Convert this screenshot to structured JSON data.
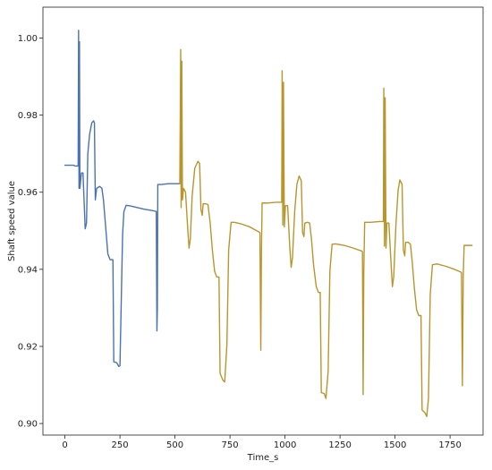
{
  "chart_data": {
    "type": "line",
    "title": "",
    "xlabel": "Time_s",
    "ylabel": "Shaft speed value",
    "xlim": [
      -100,
      1900
    ],
    "ylim": [
      0.897,
      1.008
    ],
    "grid": false,
    "x_ticks": [
      0,
      250,
      500,
      750,
      1000,
      1250,
      1500,
      1750
    ],
    "x_tick_labels": [
      "0",
      "250",
      "500",
      "750",
      "1000",
      "1250",
      "1500",
      "1750"
    ],
    "y_ticks": [
      0.9,
      0.92,
      0.94,
      0.96,
      0.98,
      1.0
    ],
    "y_tick_labels": [
      "0.90",
      "0.92",
      "0.94",
      "0.96",
      "0.98",
      "1.00"
    ],
    "series": [
      {
        "color": "#4C72B0",
        "points": [
          [
            0,
            0.967
          ],
          [
            40,
            0.967
          ],
          [
            45,
            0.9668
          ],
          [
            60,
            0.9668
          ],
          [
            62,
            1.002
          ],
          [
            64,
            0.961
          ],
          [
            66,
            0.999
          ],
          [
            68,
            0.961
          ],
          [
            75,
            0.965
          ],
          [
            82,
            0.965
          ],
          [
            92,
            0.9505
          ],
          [
            98,
            0.952
          ],
          [
            104,
            0.97
          ],
          [
            112,
            0.975
          ],
          [
            122,
            0.978
          ],
          [
            130,
            0.9785
          ],
          [
            134,
            0.978
          ],
          [
            138,
            0.958
          ],
          [
            144,
            0.961
          ],
          [
            158,
            0.9615
          ],
          [
            168,
            0.961
          ],
          [
            175,
            0.958
          ],
          [
            185,
            0.951
          ],
          [
            195,
            0.944
          ],
          [
            205,
            0.9425
          ],
          [
            218,
            0.9425
          ],
          [
            222,
            0.916
          ],
          [
            235,
            0.9158
          ],
          [
            245,
            0.9148
          ],
          [
            250,
            0.915
          ],
          [
            262,
            0.949
          ],
          [
            268,
            0.955
          ],
          [
            278,
            0.9566
          ],
          [
            300,
            0.9564
          ],
          [
            330,
            0.956
          ],
          [
            360,
            0.9556
          ],
          [
            400,
            0.9552
          ],
          [
            415,
            0.955
          ],
          [
            418,
            0.924
          ],
          [
            420,
            0.93
          ],
          [
            422,
            0.962
          ],
          [
            440,
            0.962
          ],
          [
            470,
            0.9622
          ],
          [
            510,
            0.9622
          ],
          [
            522,
            0.9622
          ]
        ]
      },
      {
        "color": "#B8962E",
        "points": [
          [
            522,
            0.9622
          ],
          [
            526,
            0.997
          ],
          [
            528,
            0.956
          ],
          [
            531,
            0.994
          ],
          [
            534,
            0.958
          ],
          [
            539,
            0.961
          ],
          [
            548,
            0.96
          ],
          [
            558,
            0.9505
          ],
          [
            564,
            0.9455
          ],
          [
            570,
            0.948
          ],
          [
            578,
            0.959
          ],
          [
            590,
            0.9662
          ],
          [
            604,
            0.968
          ],
          [
            612,
            0.9675
          ],
          [
            618,
            0.9555
          ],
          [
            624,
            0.954
          ],
          [
            628,
            0.957
          ],
          [
            640,
            0.957
          ],
          [
            650,
            0.9568
          ],
          [
            660,
            0.952
          ],
          [
            670,
            0.945
          ],
          [
            680,
            0.9395
          ],
          [
            690,
            0.938
          ],
          [
            700,
            0.938
          ],
          [
            705,
            0.913
          ],
          [
            718,
            0.9112
          ],
          [
            726,
            0.9108
          ],
          [
            736,
            0.9205
          ],
          [
            744,
            0.945
          ],
          [
            755,
            0.9522
          ],
          [
            770,
            0.9522
          ],
          [
            800,
            0.9518
          ],
          [
            840,
            0.951
          ],
          [
            878,
            0.9498
          ],
          [
            886,
            0.9495
          ],
          [
            890,
            0.919
          ],
          [
            893,
            0.945
          ],
          [
            896,
            0.9572
          ],
          [
            920,
            0.9572
          ],
          [
            960,
            0.9574
          ],
          [
            985,
            0.9574
          ],
          [
            987,
            0.9915
          ],
          [
            990,
            0.9515
          ],
          [
            993,
            0.9885
          ],
          [
            997,
            0.951
          ],
          [
            1002,
            0.9565
          ],
          [
            1012,
            0.9565
          ],
          [
            1022,
            0.9455
          ],
          [
            1028,
            0.9405
          ],
          [
            1034,
            0.943
          ],
          [
            1044,
            0.955
          ],
          [
            1054,
            0.962
          ],
          [
            1064,
            0.9642
          ],
          [
            1074,
            0.963
          ],
          [
            1080,
            0.9495
          ],
          [
            1086,
            0.9485
          ],
          [
            1090,
            0.952
          ],
          [
            1102,
            0.9522
          ],
          [
            1112,
            0.952
          ],
          [
            1120,
            0.948
          ],
          [
            1130,
            0.941
          ],
          [
            1142,
            0.9355
          ],
          [
            1152,
            0.934
          ],
          [
            1160,
            0.934
          ],
          [
            1165,
            0.908
          ],
          [
            1178,
            0.9078
          ],
          [
            1186,
            0.9065
          ],
          [
            1196,
            0.9135
          ],
          [
            1204,
            0.9395
          ],
          [
            1214,
            0.9465
          ],
          [
            1230,
            0.9466
          ],
          [
            1270,
            0.9462
          ],
          [
            1310,
            0.9455
          ],
          [
            1346,
            0.9448
          ],
          [
            1352,
            0.9446
          ],
          [
            1355,
            0.9075
          ],
          [
            1358,
            0.939
          ],
          [
            1362,
            0.9522
          ],
          [
            1390,
            0.9522
          ],
          [
            1430,
            0.9524
          ],
          [
            1447,
            0.9524
          ],
          [
            1449,
            0.987
          ],
          [
            1452,
            0.946
          ],
          [
            1455,
            0.9845
          ],
          [
            1459,
            0.9455
          ],
          [
            1463,
            0.952
          ],
          [
            1472,
            0.952
          ],
          [
            1482,
            0.9415
          ],
          [
            1488,
            0.9355
          ],
          [
            1494,
            0.938
          ],
          [
            1504,
            0.9515
          ],
          [
            1514,
            0.9605
          ],
          [
            1522,
            0.9632
          ],
          [
            1532,
            0.962
          ],
          [
            1538,
            0.945
          ],
          [
            1544,
            0.9435
          ],
          [
            1548,
            0.947
          ],
          [
            1560,
            0.947
          ],
          [
            1570,
            0.9465
          ],
          [
            1578,
            0.942
          ],
          [
            1588,
            0.935
          ],
          [
            1598,
            0.9295
          ],
          [
            1608,
            0.928
          ],
          [
            1618,
            0.928
          ],
          [
            1623,
            0.9035
          ],
          [
            1636,
            0.9028
          ],
          [
            1644,
            0.9018
          ],
          [
            1652,
            0.9065
          ],
          [
            1660,
            0.9335
          ],
          [
            1670,
            0.9412
          ],
          [
            1690,
            0.9414
          ],
          [
            1730,
            0.9408
          ],
          [
            1770,
            0.94
          ],
          [
            1802,
            0.9392
          ],
          [
            1806,
            0.9098
          ],
          [
            1810,
            0.9385
          ],
          [
            1814,
            0.9462
          ],
          [
            1840,
            0.9462
          ],
          [
            1850,
            0.9462
          ]
        ]
      }
    ]
  }
}
